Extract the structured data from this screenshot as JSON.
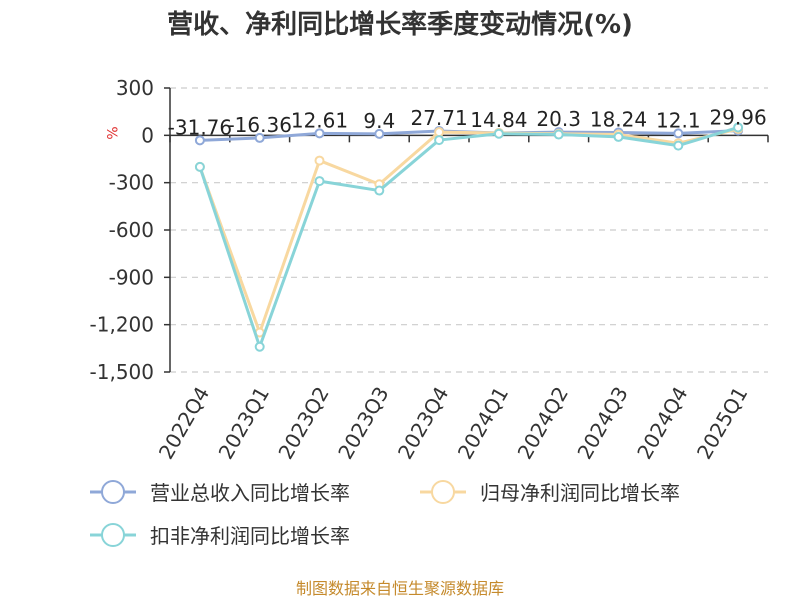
{
  "chart_data": {
    "type": "line",
    "title": "营收、净利同比增长率季度变动情况(%)",
    "unit_label": "%",
    "categories": [
      "2022Q4",
      "2023Q1",
      "2023Q2",
      "2023Q3",
      "2023Q4",
      "2024Q1",
      "2024Q2",
      "2024Q3",
      "2024Q4",
      "2025Q1"
    ],
    "ylim": [
      -1500,
      300
    ],
    "yticks": [
      300,
      0,
      -300,
      -600,
      -900,
      -1200,
      -1500
    ],
    "ytick_labels": [
      "300",
      "0",
      "-300",
      "-600",
      "-900",
      "-1,200",
      "-1,500"
    ],
    "grid": true,
    "legend_position": "bottom",
    "series": [
      {
        "name": "营业总收入同比增长率",
        "color": "#8fa8d8",
        "values": [
          -31.76,
          -16.36,
          12.61,
          9.4,
          27.71,
          14.84,
          20.3,
          18.24,
          12.1,
          29.96
        ],
        "labels": [
          "-31.76",
          "-16.36",
          "12.61",
          "9.4",
          "27.71",
          "14.84",
          "20.3",
          "18.24",
          "12.1",
          "29.96"
        ]
      },
      {
        "name": "归母净利润同比增长率",
        "color": "#f8d8a0",
        "values": [
          -200,
          -1250,
          -160,
          -310,
          20,
          15,
          10,
          5,
          -50,
          40
        ]
      },
      {
        "name": "扣非净利润同比增长率",
        "color": "#88d4d8",
        "values": [
          -200,
          -1340,
          -290,
          -350,
          -30,
          10,
          5,
          -10,
          -65,
          50
        ]
      }
    ]
  },
  "source_note": "制图数据来自恒生聚源数据库"
}
